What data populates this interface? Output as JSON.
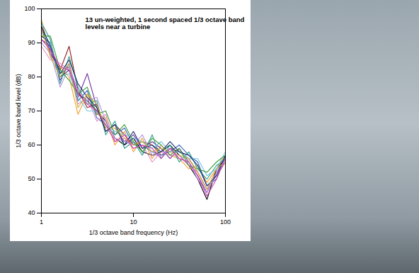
{
  "chart_data": {
    "type": "line",
    "annotation": "13 un-weighted, 1 second spaced 1/3 octave band levels near a turbine",
    "x_label": "1/3 octave band frequency (Hz)",
    "y_label": "1/3 octave band level (dB)",
    "log": "x",
    "grid": false,
    "x": [
      1,
      1.25,
      1.6,
      2,
      2.5,
      3.15,
      4,
      5,
      6.3,
      8,
      10,
      12.5,
      16,
      20,
      25,
      31.5,
      40,
      50,
      63,
      80,
      100
    ],
    "xlim": [
      1,
      100
    ],
    "xticks": [
      1,
      10,
      100
    ],
    "ylim": [
      40,
      100
    ],
    "yticks": [
      40,
      50,
      60,
      70,
      80,
      90,
      100
    ],
    "series": [
      {
        "color": "#000000",
        "values": [
          92,
          90,
          80,
          82,
          75,
          73,
          70,
          67,
          62,
          60,
          62,
          58,
          57,
          58,
          60,
          57,
          54,
          50,
          44,
          53,
          56
        ]
      },
      {
        "color": "#8b1a1a",
        "values": [
          95,
          87,
          82,
          89,
          76,
          71,
          72,
          64,
          66,
          63,
          60,
          61,
          60,
          57,
          59,
          58,
          56,
          52,
          47,
          51,
          55
        ]
      },
      {
        "color": "#f0a030",
        "values": [
          97,
          86,
          83,
          80,
          69,
          75,
          69,
          68,
          60,
          64,
          58,
          62,
          56,
          60,
          57,
          56,
          53,
          54,
          49,
          53,
          57
        ]
      },
      {
        "color": "#7030a0",
        "values": [
          91,
          89,
          79,
          84,
          74,
          81,
          71,
          65,
          65,
          61,
          63,
          59,
          61,
          59,
          56,
          59,
          55,
          51,
          46,
          52,
          56
        ]
      },
      {
        "color": "#3060c0",
        "values": [
          94,
          88,
          81,
          83,
          73,
          76,
          68,
          66,
          63,
          65,
          60,
          60,
          58,
          57,
          58,
          60,
          57,
          55,
          48,
          50,
          57
        ]
      },
      {
        "color": "#2a9d8f",
        "values": [
          96,
          91,
          78,
          86,
          77,
          72,
          73,
          63,
          67,
          59,
          61,
          57,
          63,
          56,
          60,
          55,
          58,
          53,
          50,
          54,
          56
        ]
      },
      {
        "color": "#e48bc0",
        "values": [
          89,
          85,
          84,
          82,
          72,
          74,
          67,
          69,
          61,
          62,
          59,
          60,
          55,
          58,
          57,
          57,
          54,
          52,
          47,
          51,
          55
        ]
      },
      {
        "color": "#6ec6e8",
        "values": [
          93,
          90,
          80,
          81,
          74,
          70,
          70,
          66,
          64,
          63,
          62,
          61,
          59,
          61,
          58,
          58,
          56,
          56,
          51,
          53,
          58
        ]
      },
      {
        "color": "#b090e0",
        "values": [
          90,
          87,
          77,
          83,
          76,
          73,
          74,
          67,
          62,
          61,
          60,
          63,
          57,
          57,
          59,
          56,
          55,
          50,
          46,
          52,
          56
        ]
      },
      {
        "color": "#1c2f6e",
        "values": [
          95,
          89,
          81,
          85,
          78,
          74,
          71,
          64,
          66,
          60,
          64,
          59,
          60,
          58,
          61,
          58,
          57,
          54,
          48,
          51,
          57
        ]
      },
      {
        "color": "#3a9a3a",
        "values": [
          92,
          92,
          82,
          79,
          75,
          77,
          69,
          70,
          63,
          66,
          61,
          58,
          62,
          60,
          57,
          59,
          54,
          53,
          52,
          55,
          57
        ]
      },
      {
        "color": "#c8b040",
        "values": [
          94,
          86,
          80,
          84,
          71,
          75,
          72,
          65,
          65,
          62,
          60,
          61,
          58,
          59,
          58,
          57,
          56,
          52,
          47,
          53,
          55
        ]
      },
      {
        "color": "#d040b0",
        "values": [
          91,
          88,
          83,
          82,
          75,
          72,
          70,
          66,
          61,
          63,
          59,
          60,
          59,
          56,
          59,
          56,
          55,
          51,
          45,
          50,
          56
        ]
      }
    ]
  }
}
